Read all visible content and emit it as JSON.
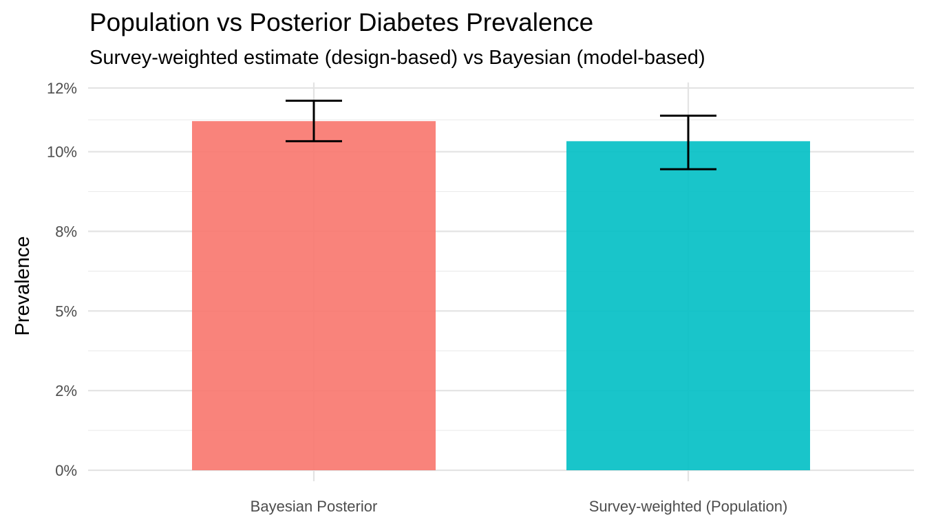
{
  "chart_data": {
    "type": "bar",
    "title": "Population vs Posterior Diabetes Prevalence",
    "subtitle": "Survey-weighted estimate (design-based) vs Bayesian (model-based)",
    "xlabel": "",
    "ylabel": "Prevalence",
    "categories": [
      "Bayesian Posterior",
      "Survey-weighted (Population)"
    ],
    "values": [
      0.1096,
      0.1033
    ],
    "error_low": [
      0.1033,
      0.0945
    ],
    "error_high": [
      0.116,
      0.1113
    ],
    "colors": [
      "#F8766D",
      "#00BFC4"
    ],
    "ylim": [
      0,
      0.12
    ],
    "y_ticks": [
      0,
      0.025,
      0.05,
      0.075,
      0.1,
      0.12
    ],
    "y_tick_labels": [
      "0%",
      "2%",
      "5%",
      "8%",
      "10%",
      "12%"
    ],
    "grid": true,
    "legend": "none"
  }
}
